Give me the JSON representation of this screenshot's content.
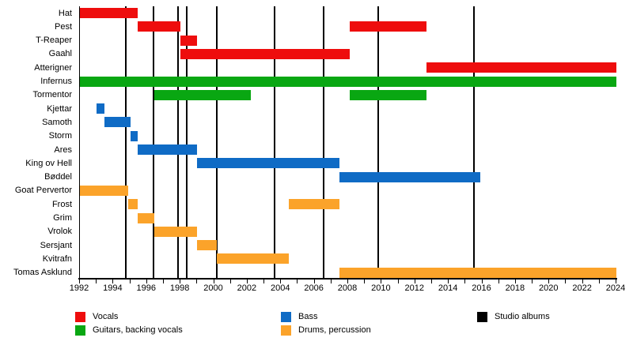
{
  "chart_data": {
    "type": "gantt-timeline",
    "description": "Band members timeline with studio album markers",
    "axis": {
      "min": 1992,
      "max": 2024,
      "tick_step": 1,
      "label_step": 2,
      "tick_labels": [
        "1992",
        "1994",
        "1996",
        "1998",
        "2000",
        "2002",
        "2004",
        "2006",
        "2008",
        "2010",
        "2012",
        "2014",
        "2016",
        "2018",
        "2020",
        "2022",
        "2024"
      ]
    },
    "role_colors": {
      "vocals": "#ee0d0d",
      "guitars": "#09a712",
      "bass": "#0f6bc5",
      "drums": "#fba32a",
      "albums": "#000000"
    },
    "members": [
      {
        "name": "Hat",
        "role": "vocals",
        "bars": [
          [
            1992.0,
            1995.45
          ]
        ]
      },
      {
        "name": "Pest",
        "role": "vocals",
        "bars": [
          [
            1995.45,
            1998.0
          ],
          [
            2008.1,
            2012.65
          ]
        ]
      },
      {
        "name": "T-Reaper",
        "role": "vocals",
        "bars": [
          [
            1998.0,
            1999.0
          ]
        ]
      },
      {
        "name": "Gaahl",
        "role": "vocals",
        "bars": [
          [
            1998.0,
            2008.1
          ]
        ]
      },
      {
        "name": "Atterigner",
        "role": "vocals",
        "bars": [
          [
            2012.65,
            2024.0
          ]
        ]
      },
      {
        "name": "Infernus",
        "role": "guitars",
        "bars": [
          [
            1992.0,
            2024.0
          ]
        ]
      },
      {
        "name": "Tormentor",
        "role": "guitars",
        "bars": [
          [
            1996.45,
            2002.2
          ],
          [
            2008.1,
            2012.65
          ]
        ]
      },
      {
        "name": "Kjettar",
        "role": "bass",
        "bars": [
          [
            1993.0,
            1993.45
          ]
        ]
      },
      {
        "name": "Samoth",
        "role": "bass",
        "bars": [
          [
            1993.45,
            1995.0
          ]
        ]
      },
      {
        "name": "Storm",
        "role": "bass",
        "bars": [
          [
            1995.0,
            1995.45
          ]
        ]
      },
      {
        "name": "Ares",
        "role": "bass",
        "bars": [
          [
            1995.45,
            1999.0
          ]
        ]
      },
      {
        "name": "King ov Hell",
        "role": "bass",
        "bars": [
          [
            1999.0,
            2007.5
          ]
        ]
      },
      {
        "name": "Bøddel",
        "role": "bass",
        "bars": [
          [
            2007.5,
            2015.9
          ]
        ]
      },
      {
        "name": "Goat Pervertor",
        "role": "drums",
        "bars": [
          [
            1992.0,
            1994.9
          ]
        ]
      },
      {
        "name": "Frost",
        "role": "drums",
        "bars": [
          [
            1994.9,
            1995.45
          ],
          [
            2004.45,
            2007.5
          ]
        ]
      },
      {
        "name": "Grim",
        "role": "drums",
        "bars": [
          [
            1995.45,
            1996.45
          ]
        ]
      },
      {
        "name": "Vrolok",
        "role": "drums",
        "bars": [
          [
            1996.45,
            1999.0
          ]
        ]
      },
      {
        "name": "Sersjant",
        "role": "drums",
        "bars": [
          [
            1999.0,
            2000.15
          ]
        ]
      },
      {
        "name": "Kvitrafn",
        "role": "drums",
        "bars": [
          [
            2000.15,
            2004.45
          ]
        ]
      },
      {
        "name": "Tomas Asklund",
        "role": "drums",
        "bars": [
          [
            2007.5,
            2024.0
          ]
        ]
      }
    ],
    "albums": [
      1994.75,
      1996.4,
      1997.85,
      1998.35,
      2000.15,
      2003.6,
      2006.55,
      2009.8,
      2015.5
    ],
    "legend": [
      {
        "label": "Vocals",
        "color": "#ee0d0d"
      },
      {
        "label": "Guitars, backing vocals",
        "color": "#09a712"
      },
      {
        "label": "Bass",
        "color": "#0f6bc5"
      },
      {
        "label": "Drums, percussion",
        "color": "#fba32a"
      },
      {
        "label": "Studio albums",
        "color": "#000000"
      }
    ]
  }
}
